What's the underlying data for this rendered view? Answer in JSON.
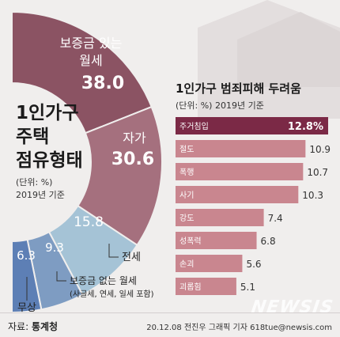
{
  "chart_data": [
    {
      "type": "pie",
      "variant": "half-donut",
      "title": "1인가구\n주택\n점유형태",
      "unit_note": "(단위: %)",
      "year_note": "2019년 기준",
      "categories": [
        "보증금 있는 월세",
        "자가",
        "전세",
        "보증금 없는 월세",
        "무상"
      ],
      "values": [
        38.0,
        30.6,
        15.8,
        9.3,
        6.3
      ],
      "labels": [
        {
          "name_line1": "보증금 있는",
          "name_line2": "월세",
          "value_text": "38.0"
        },
        {
          "name_line1": "자가",
          "name_line2": "",
          "value_text": "30.6"
        },
        {
          "name_line1": "전세",
          "name_line2": "",
          "value_text": "15.8"
        },
        {
          "name_line1": "보증금 없는 월세",
          "name_line2": "(사글세, 연세, 일세 포함)",
          "value_text": "9.3"
        },
        {
          "name_line1": "무상",
          "name_line2": "",
          "value_text": "6.3"
        }
      ],
      "colors": [
        "#8b5363",
        "#a5707e",
        "#a5c3d6",
        "#7e9cc2",
        "#5d7fb5"
      ]
    },
    {
      "type": "bar",
      "orientation": "horizontal",
      "title": "1인가구 범죄피해 두려움",
      "unit_note": "(단위: %) 2019년 기준",
      "categories": [
        "주거침입",
        "절도",
        "폭행",
        "사기",
        "강도",
        "성폭력",
        "손괴",
        "괴롭힘"
      ],
      "values": [
        12.8,
        10.9,
        10.7,
        10.3,
        7.4,
        6.8,
        5.6,
        5.1
      ],
      "value_labels": [
        "12.8%",
        "10.9",
        "10.7",
        "10.3",
        "7.4",
        "6.8",
        "5.6",
        "5.1"
      ],
      "highlight_color": "#7b2946",
      "bar_color": "#c9868f"
    }
  ],
  "footer": {
    "source_label": "자료:",
    "source_name": "통계청",
    "credit": "20.12.08 전진우 그래픽 기자 618tue@newsis.com"
  },
  "watermark": "NEWSIS"
}
